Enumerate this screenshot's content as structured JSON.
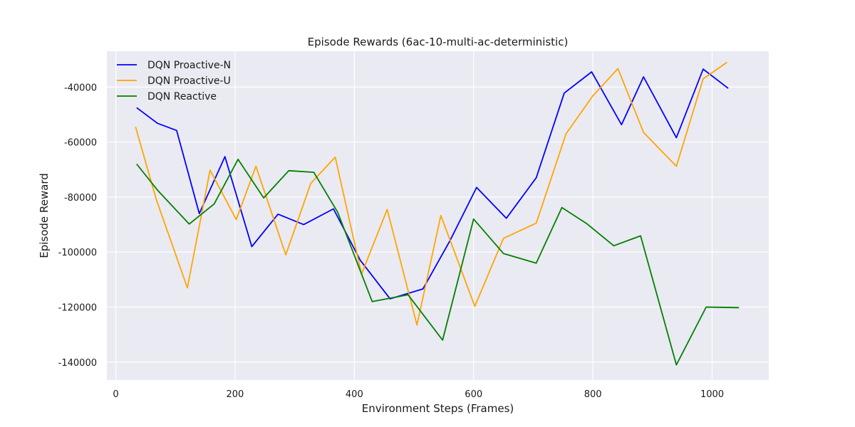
{
  "chart_data": {
    "type": "line",
    "title": "Episode Rewards (6ac-10-multi-ac-deterministic)",
    "xlabel": "Environment Steps (Frames)",
    "ylabel": "Episode Reward",
    "xlim": [
      -15,
      1095
    ],
    "ylim": [
      -146500,
      -27000
    ],
    "xticks": [
      0,
      200,
      400,
      600,
      800,
      1000
    ],
    "yticks": [
      -140000,
      -120000,
      -100000,
      -80000,
      -60000,
      -40000
    ],
    "grid": true,
    "legend_position": "top-left",
    "series": [
      {
        "name": "DQN Proactive-N",
        "color": "#0000ff",
        "x": [
          35,
          70,
          102,
          140,
          183,
          228,
          272,
          315,
          365,
          410,
          460,
          515,
          560,
          605,
          655,
          705,
          752,
          798,
          848,
          885,
          940,
          985,
          1027
        ],
        "y": [
          -47500,
          -53200,
          -55800,
          -86000,
          -65300,
          -98000,
          -86200,
          -90000,
          -84300,
          -103000,
          -117000,
          -113400,
          -96000,
          -76500,
          -87700,
          -73000,
          -42200,
          -34500,
          -53700,
          -36300,
          -58400,
          -33500,
          -40500
        ]
      },
      {
        "name": "DQN Proactive-U",
        "color": "#ffa500",
        "x": [
          33,
          68,
          120,
          158,
          202,
          235,
          285,
          327,
          368,
          412,
          455,
          505,
          545,
          602,
          650,
          705,
          755,
          800,
          842,
          885,
          940,
          985,
          1025
        ],
        "y": [
          -54500,
          -81000,
          -113000,
          -70200,
          -88200,
          -68800,
          -101000,
          -75000,
          -65500,
          -108000,
          -84500,
          -126500,
          -86700,
          -119700,
          -95000,
          -89500,
          -57000,
          -43200,
          -33300,
          -56500,
          -68800,
          -37000,
          -31000
        ]
      },
      {
        "name": "DQN Reactive",
        "color": "#008000",
        "x": [
          35,
          70,
          123,
          165,
          205,
          248,
          290,
          332,
          372,
          430,
          490,
          548,
          600,
          650,
          705,
          748,
          790,
          835,
          880,
          940,
          990,
          1045
        ],
        "y": [
          -68000,
          -77500,
          -89800,
          -82500,
          -66300,
          -80300,
          -70400,
          -71000,
          -85500,
          -118000,
          -115500,
          -132000,
          -88000,
          -100500,
          -104000,
          -83800,
          -89700,
          -97700,
          -94100,
          -141000,
          -120000,
          -120200
        ]
      }
    ]
  }
}
